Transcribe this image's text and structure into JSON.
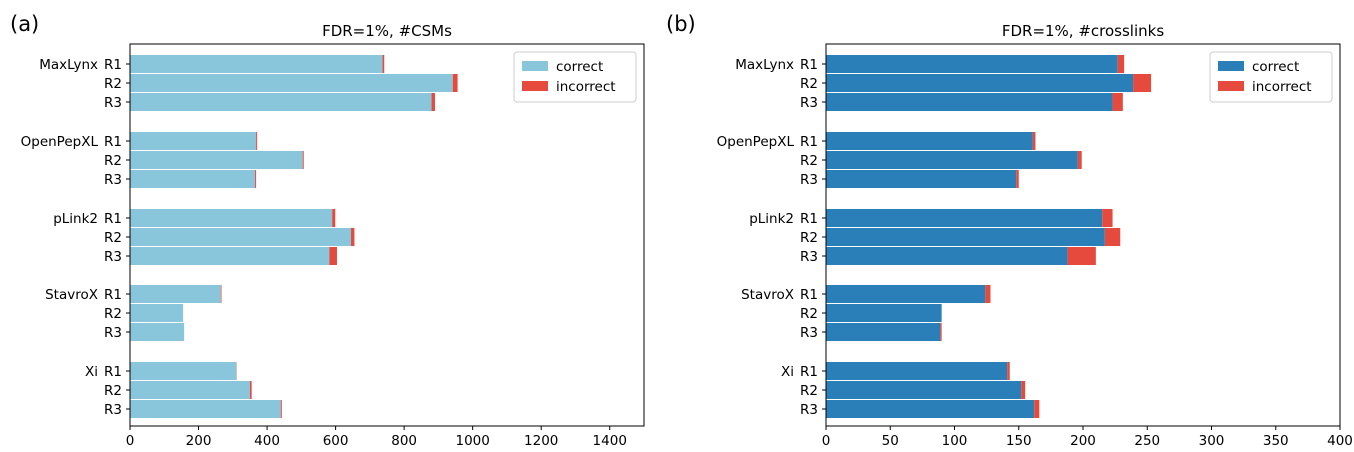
{
  "colors": {
    "panel_a_correct": "#89c6dc",
    "panel_b_correct": "#2b7fb9",
    "incorrect": "#e64a3c"
  },
  "chart_data": [
    {
      "panel": "(a)",
      "type": "bar",
      "orientation": "horizontal",
      "stacked": true,
      "title": "FDR=1%, #CSMs",
      "xlabel": "",
      "ylabel": "",
      "xlim": [
        0,
        1500
      ],
      "xticks": [
        0,
        200,
        400,
        600,
        800,
        1000,
        1200,
        1400
      ],
      "grid": false,
      "legend": "top-right",
      "groups": [
        {
          "name": "MaxLynx",
          "replicates": [
            "R1",
            "R2",
            "R3"
          ]
        },
        {
          "name": "OpenPepXL",
          "replicates": [
            "R1",
            "R2",
            "R3"
          ]
        },
        {
          "name": "pLink2",
          "replicates": [
            "R1",
            "R2",
            "R3"
          ]
        },
        {
          "name": "StavroX",
          "replicates": [
            "R1",
            "R2",
            "R3"
          ]
        },
        {
          "name": "Xi",
          "replicates": [
            "R1",
            "R2",
            "R3"
          ]
        }
      ],
      "series": [
        {
          "name": "correct",
          "color": "#89c6dc",
          "values": [
            [
              737,
              942,
              880
            ],
            [
              368,
              504,
              365
            ],
            [
              590,
              645,
              582
            ],
            [
              265,
              155,
              158
            ],
            [
              310,
              350,
              440
            ]
          ]
        },
        {
          "name": "incorrect",
          "color": "#e64a3c",
          "values": [
            [
              5,
              14,
              10
            ],
            [
              3,
              3,
              3
            ],
            [
              9,
              10,
              22
            ],
            [
              2,
              0,
              0
            ],
            [
              1,
              5,
              3
            ]
          ]
        }
      ]
    },
    {
      "panel": "(b)",
      "type": "bar",
      "orientation": "horizontal",
      "stacked": true,
      "title": "FDR=1%, #crosslinks",
      "xlabel": "",
      "ylabel": "",
      "xlim": [
        0,
        400
      ],
      "xticks": [
        0,
        50,
        100,
        150,
        200,
        250,
        300,
        350,
        400
      ],
      "grid": false,
      "legend": "top-right",
      "groups": [
        {
          "name": "MaxLynx",
          "replicates": [
            "R1",
            "R2",
            "R3"
          ]
        },
        {
          "name": "OpenPepXL",
          "replicates": [
            "R1",
            "R2",
            "R3"
          ]
        },
        {
          "name": "pLink2",
          "replicates": [
            "R1",
            "R2",
            "R3"
          ]
        },
        {
          "name": "StavroX",
          "replicates": [
            "R1",
            "R2",
            "R3"
          ]
        },
        {
          "name": "Xi",
          "replicates": [
            "R1",
            "R2",
            "R3"
          ]
        }
      ],
      "series": [
        {
          "name": "correct",
          "color": "#2b7fb9",
          "values": [
            [
              227,
              239,
              223
            ],
            [
              161,
              196,
              148
            ],
            [
              215,
              217,
              188
            ],
            [
              124,
              90,
              89
            ],
            [
              141,
              152,
              162
            ]
          ]
        },
        {
          "name": "incorrect",
          "color": "#e64a3c",
          "values": [
            [
              5,
              14,
              8
            ],
            [
              2,
              3,
              2
            ],
            [
              8,
              12,
              22
            ],
            [
              4,
              0,
              1
            ],
            [
              2,
              3,
              4
            ]
          ]
        }
      ]
    }
  ]
}
